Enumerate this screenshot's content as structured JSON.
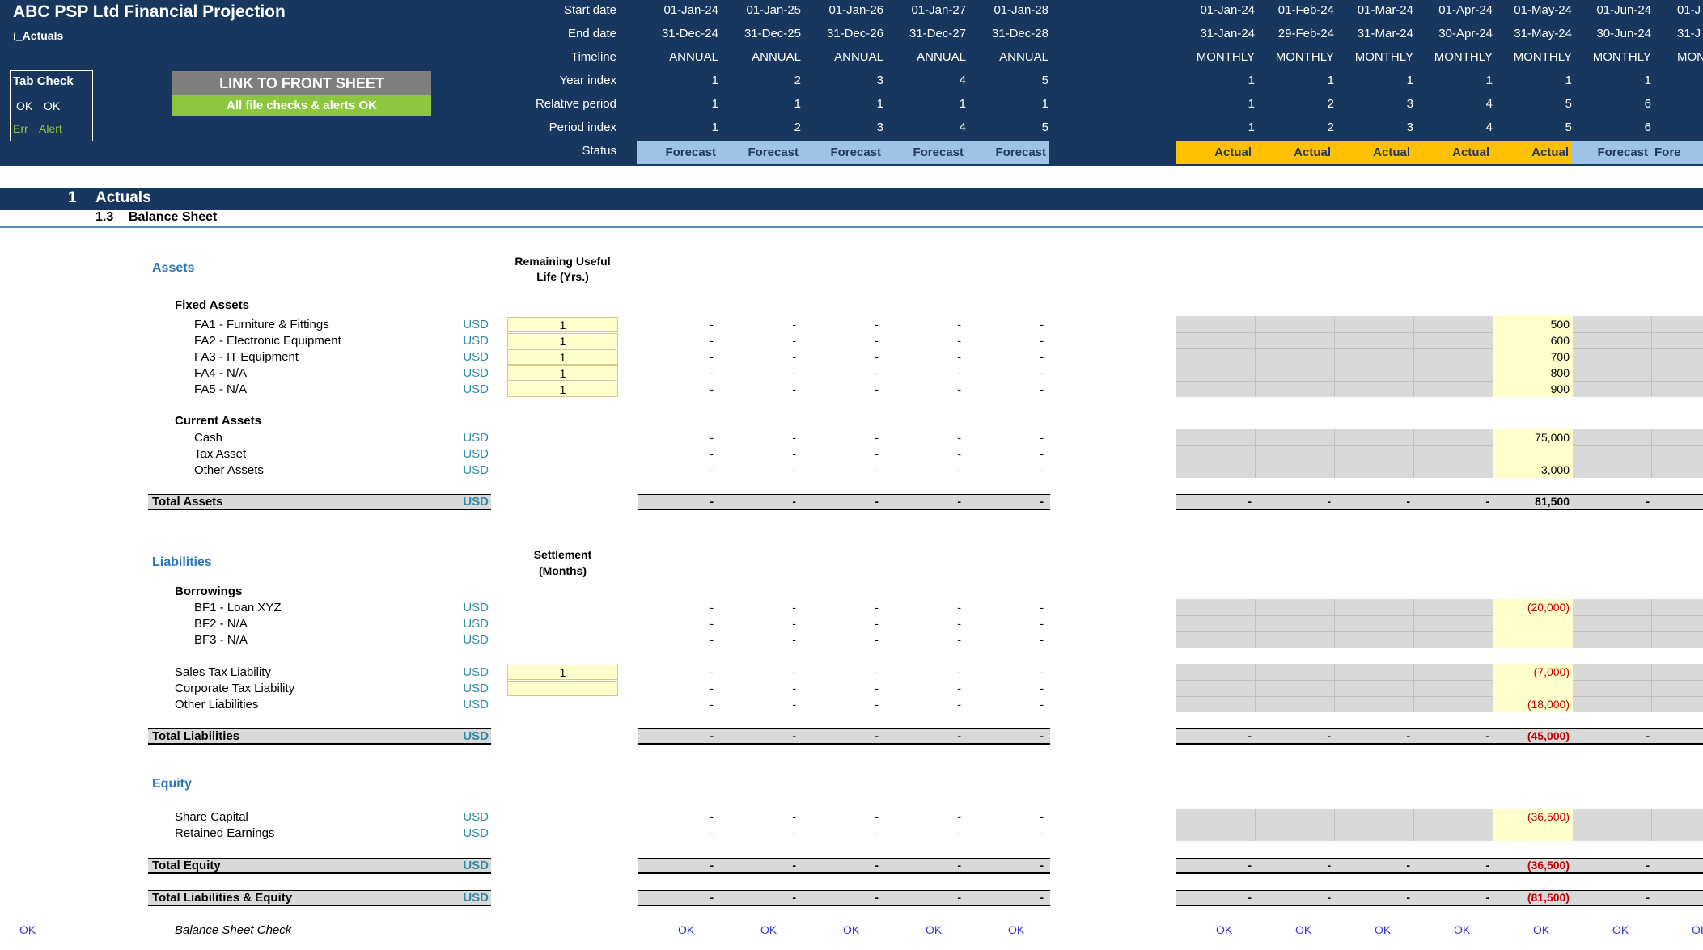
{
  "header": {
    "title": "ABC PSP Ltd Financial Projection",
    "subtitle": "i_Actuals",
    "tab_check": {
      "label": "Tab Check",
      "ok1": "OK",
      "ok2": "OK",
      "err": "Err",
      "alert": "Alert"
    },
    "link_button": "LINK TO FRONT SHEET",
    "alert_message": "All file checks & alerts OK",
    "row_labels": [
      "Start date",
      "End date",
      "Timeline",
      "Year index",
      "Relative period",
      "Period index",
      "Status"
    ],
    "annual": {
      "start": [
        "01-Jan-24",
        "01-Jan-25",
        "01-Jan-26",
        "01-Jan-27",
        "01-Jan-28"
      ],
      "end": [
        "31-Dec-24",
        "31-Dec-25",
        "31-Dec-26",
        "31-Dec-27",
        "31-Dec-28"
      ],
      "timeline": [
        "ANNUAL",
        "ANNUAL",
        "ANNUAL",
        "ANNUAL",
        "ANNUAL"
      ],
      "year_index": [
        "1",
        "2",
        "3",
        "4",
        "5"
      ],
      "relative": [
        "1",
        "1",
        "1",
        "1",
        "1"
      ],
      "period_index": [
        "1",
        "2",
        "3",
        "4",
        "5"
      ],
      "status": [
        "Forecast",
        "Forecast",
        "Forecast",
        "Forecast",
        "Forecast"
      ]
    },
    "monthly": {
      "start": [
        "01-Jan-24",
        "01-Feb-24",
        "01-Mar-24",
        "01-Apr-24",
        "01-May-24",
        "01-Jun-24",
        "01-J"
      ],
      "end": [
        "31-Jan-24",
        "29-Feb-24",
        "31-Mar-24",
        "30-Apr-24",
        "31-May-24",
        "30-Jun-24",
        "31-J"
      ],
      "timeline": [
        "MONTHLY",
        "MONTHLY",
        "MONTHLY",
        "MONTHLY",
        "MONTHLY",
        "MONTHLY",
        "MON"
      ],
      "year_index": [
        "1",
        "1",
        "1",
        "1",
        "1",
        "1",
        ""
      ],
      "relative": [
        "1",
        "2",
        "3",
        "4",
        "5",
        "6",
        ""
      ],
      "period_index": [
        "1",
        "2",
        "3",
        "4",
        "5",
        "6",
        ""
      ],
      "status": [
        "Actual",
        "Actual",
        "Actual",
        "Actual",
        "Actual",
        "Forecast",
        "Fore"
      ]
    }
  },
  "section": {
    "number": "1",
    "title": "Actuals",
    "sub_number": "1.3",
    "sub_title": "Balance Sheet"
  },
  "assets": {
    "heading": "Assets",
    "col_header_line1": "Remaining Useful",
    "col_header_line2": "Life (Yrs.)",
    "fixed_heading": "Fixed Assets",
    "fixed": [
      {
        "label": "FA1 - Furniture & Fittings",
        "unit": "USD",
        "input": "1",
        "may": "500"
      },
      {
        "label": "FA2 - Electronic Equipment",
        "unit": "USD",
        "input": "1",
        "may": "600"
      },
      {
        "label": "FA3 - IT Equipment",
        "unit": "USD",
        "input": "1",
        "may": "700"
      },
      {
        "label": "FA4 - N/A",
        "unit": "USD",
        "input": "1",
        "may": "800"
      },
      {
        "label": "FA5 - N/A",
        "unit": "USD",
        "input": "1",
        "may": "900"
      }
    ],
    "current_heading": "Current Assets",
    "current": [
      {
        "label": "Cash",
        "unit": "USD",
        "may": "75,000"
      },
      {
        "label": "Tax Asset",
        "unit": "USD",
        "may": ""
      },
      {
        "label": "Other Assets",
        "unit": "USD",
        "may": "3,000"
      }
    ],
    "total_label": "Total Assets",
    "total_unit": "USD",
    "total_may": "81,500"
  },
  "liabilities": {
    "heading": "Liabilities",
    "col_header_line1": "Settlement",
    "col_header_line2": "(Months)",
    "borrowings_heading": "Borrowings",
    "borrowings": [
      {
        "label": "BF1 - Loan XYZ",
        "unit": "USD",
        "may": "(20,000)"
      },
      {
        "label": "BF2 - N/A",
        "unit": "USD",
        "may": ""
      },
      {
        "label": "BF3 - N/A",
        "unit": "USD",
        "may": ""
      }
    ],
    "other": [
      {
        "label": "Sales Tax Liability",
        "unit": "USD",
        "input": "1",
        "may": "(7,000)"
      },
      {
        "label": "Corporate Tax Liability",
        "unit": "USD",
        "input": "",
        "may": ""
      },
      {
        "label": "Other Liabilities",
        "unit": "USD",
        "may": "(18,000)"
      }
    ],
    "total_label": "Total Liabilities",
    "total_unit": "USD",
    "total_may": "(45,000)"
  },
  "equity": {
    "heading": "Equity",
    "items": [
      {
        "label": "Share Capital",
        "unit": "USD",
        "may": "(36,500)"
      },
      {
        "label": "Retained Earnings",
        "unit": "USD",
        "may": ""
      }
    ],
    "total_label": "Total Equity",
    "total_unit": "USD",
    "total_may": "(36,500)",
    "tle_label": "Total Liabilities & Equity",
    "tle_unit": "USD",
    "tle_may": "(81,500)"
  },
  "check": {
    "left_ok": "OK",
    "label": "Balance Sheet Check",
    "annual": [
      "OK",
      "OK",
      "OK",
      "OK",
      "OK"
    ],
    "monthly": [
      "OK",
      "OK",
      "OK",
      "OK",
      "OK",
      "OK",
      "OI"
    ]
  },
  "dash": "-",
  "colors": {
    "header": "#17375e",
    "forecast": "#9dc3e6",
    "actual": "#ffc000",
    "input": "#ffffcc",
    "ok_green": "#8dc63f"
  }
}
